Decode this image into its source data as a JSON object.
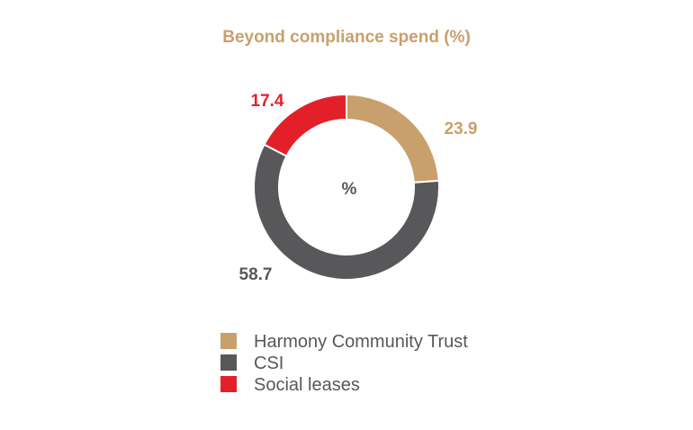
{
  "chart_data": {
    "type": "pie",
    "style": "donut",
    "title": "Beyond compliance spend (%)",
    "center_label": "%",
    "categories": [
      "Harmony Community Trust",
      "CSI",
      "Social leases"
    ],
    "values": [
      23.9,
      58.7,
      17.4
    ],
    "value_labels": [
      "23.9",
      "58.7",
      "17.4"
    ],
    "colors": [
      "#C9A06C",
      "#58585A",
      "#E3202A"
    ],
    "label_colors": [
      "#C9A06C",
      "#58585A",
      "#E3202A"
    ],
    "title_color": "#C9A06C",
    "center_label_color": "#58585A",
    "legend_text_color": "#58585A",
    "start_angle": "12 o'clock, clockwise",
    "legend_position": "bottom-center"
  }
}
